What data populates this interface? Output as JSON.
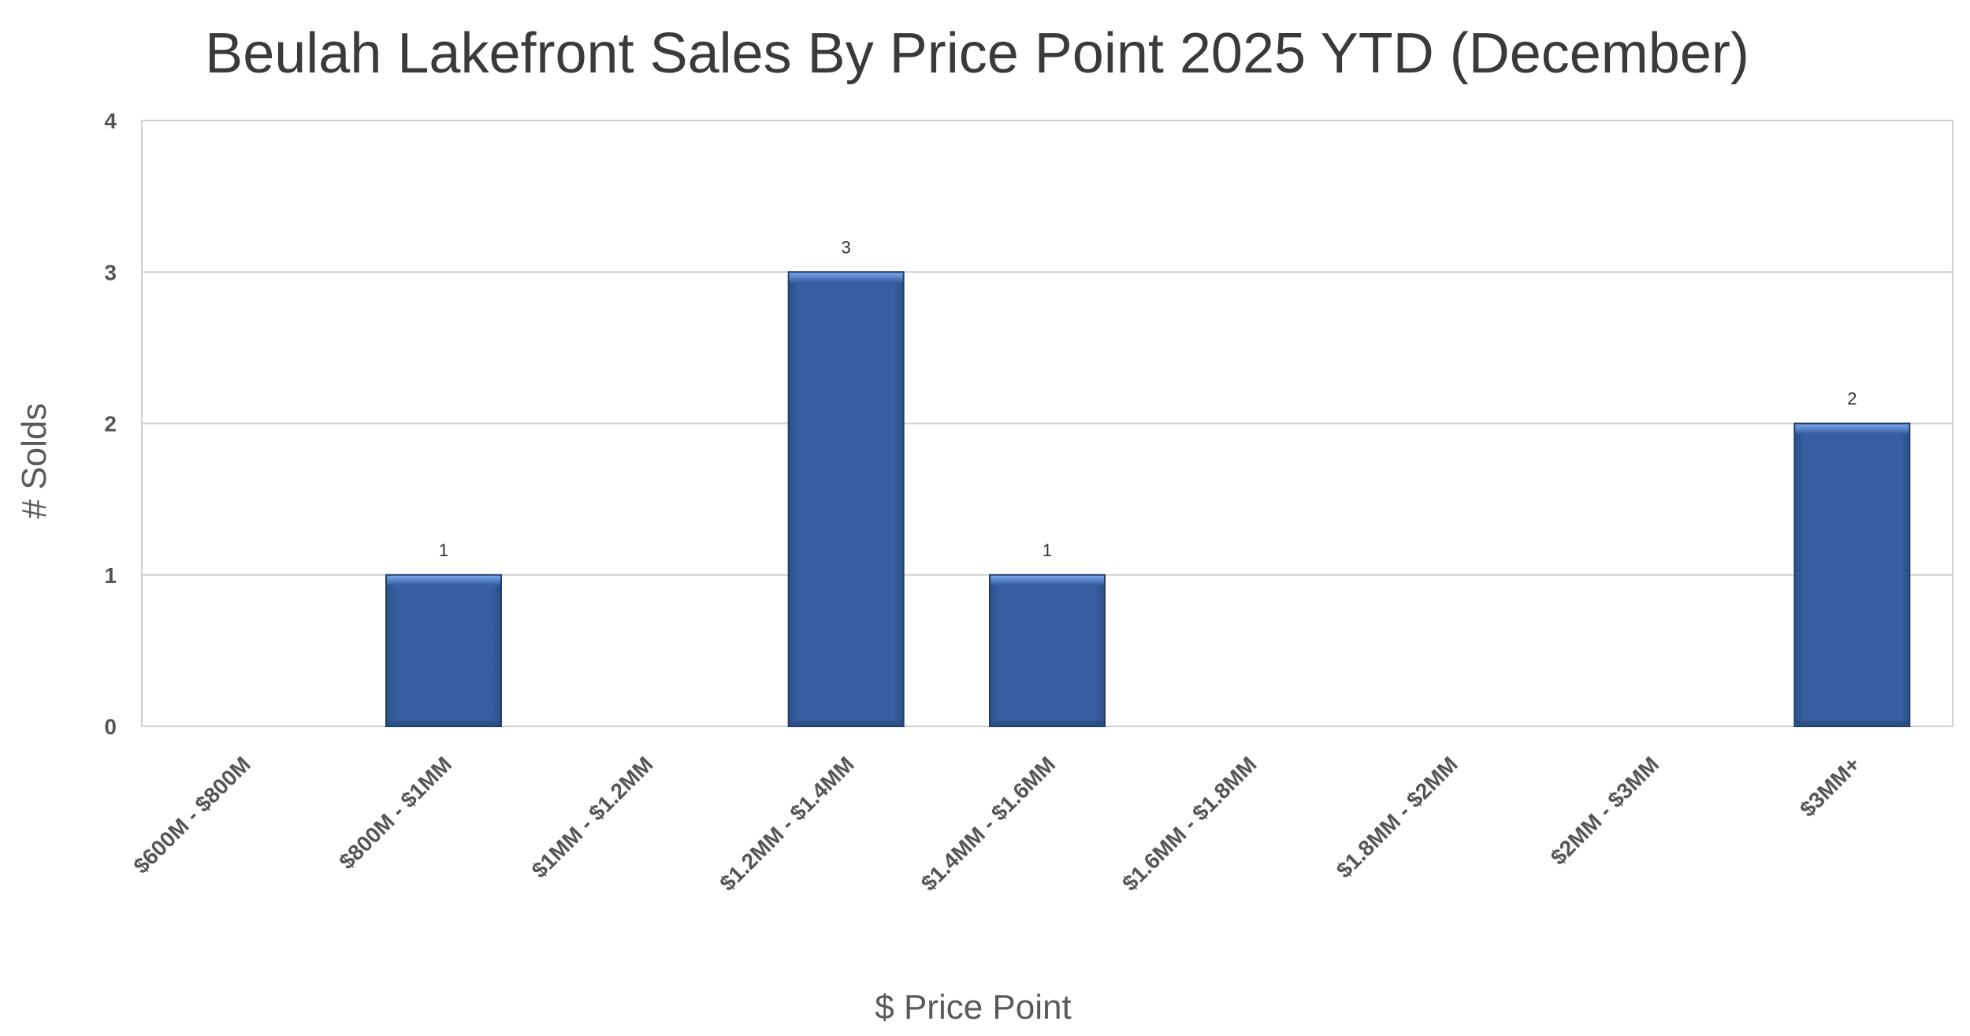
{
  "chart_data": {
    "type": "bar",
    "title": "Beulah Lakefront Sales By Price Point 2025 YTD (December)",
    "xlabel": "$ Price Point",
    "ylabel": "# Solds",
    "categories": [
      "$600M - $800M",
      "$800M - $1MM",
      "$1MM - $1.2MM",
      "$1.2MM - $1.4MM",
      "$1.4MM - $1.6MM",
      "$1.6MM - $1.8MM",
      "$1.8MM - $2MM",
      "$2MM - $3MM",
      "$3MM+"
    ],
    "values": [
      0,
      1,
      0,
      3,
      1,
      0,
      0,
      0,
      2
    ],
    "data_labels": [
      "",
      "1",
      "",
      "3",
      "1",
      "",
      "",
      "",
      "2"
    ],
    "ylim": [
      0,
      4
    ],
    "yticks": [
      "0",
      "1",
      "2",
      "3",
      "4"
    ],
    "grid": true,
    "legend": "none",
    "colors": {
      "bar": "#365f9f",
      "bar_top": "#6f9ae0",
      "bar_border": "#1f3d6b",
      "grid": "#d0d0d0",
      "title": "#3a3a3a"
    }
  }
}
